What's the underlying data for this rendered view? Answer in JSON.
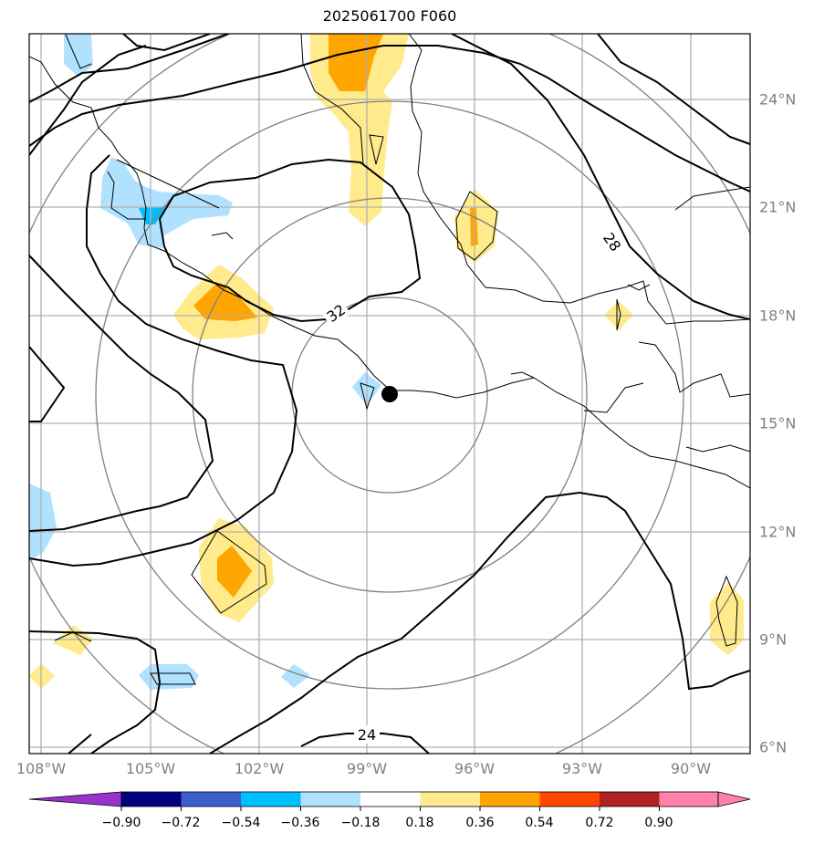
{
  "title": "2025061700 F060",
  "lon_labels": [
    "108°W",
    "105°W",
    "102°W",
    "99°W",
    "96°W",
    "93°W",
    "90°W"
  ],
  "lat_labels": [
    "24°N",
    "21°N",
    "18°N",
    "15°N",
    "12°N",
    "9°N",
    "6°N"
  ],
  "contour_labels": [
    "32",
    "28",
    "24"
  ],
  "colorbar": {
    "tick_labels": [
      "−0.90",
      "−0.72",
      "−0.54",
      "−0.36",
      "−0.18",
      "0.18",
      "0.36",
      "0.54",
      "0.72",
      "0.90"
    ],
    "colors": [
      "#9932cc",
      "#000080",
      "#3a5fcd",
      "#00bfff",
      "#b0e2ff",
      "#ffffff",
      "#ffea8c",
      "#ffa500",
      "#ff4500",
      "#b22222",
      "#ff82ab"
    ]
  },
  "shading_colors": {
    "light_blue": "#b0e2ff",
    "blue": "#00bfff",
    "light_yellow": "#ffea8c",
    "orange": "#ffa500"
  },
  "center_marker": {
    "lon": -98.4,
    "lat": 15.8
  }
}
